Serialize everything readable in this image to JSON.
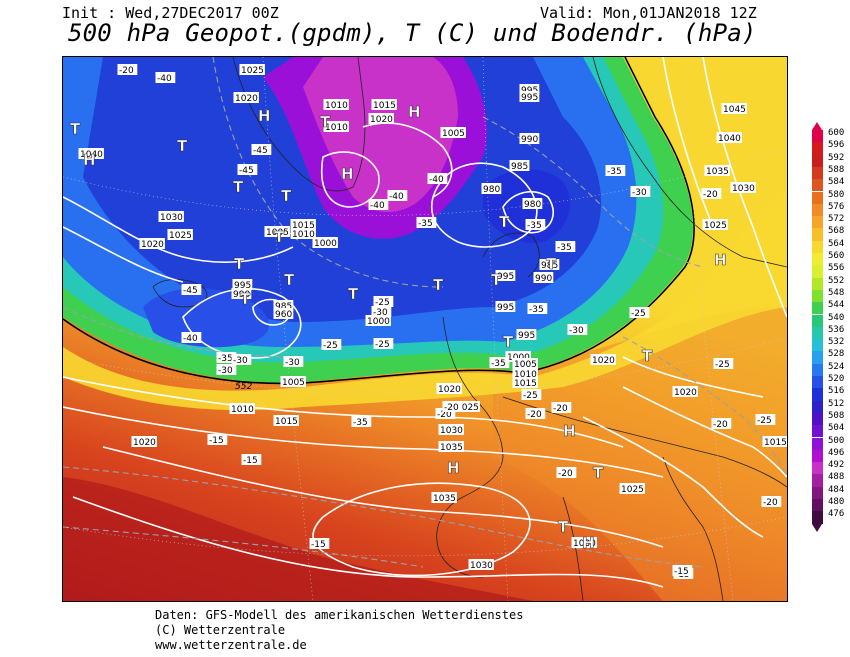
{
  "header": {
    "init": "Init : Wed,27DEC2017 00Z",
    "valid": "Valid: Mon,01JAN2018 12Z",
    "title": "500 hPa Geopot.(gpdm), T (C) und Bodendr. (hPa)"
  },
  "legend": {
    "values": [
      "600",
      "596",
      "592",
      "588",
      "584",
      "580",
      "576",
      "572",
      "568",
      "564",
      "560",
      "556",
      "552",
      "548",
      "544",
      "540",
      "536",
      "532",
      "528",
      "524",
      "520",
      "516",
      "512",
      "508",
      "504",
      "500",
      "496",
      "492",
      "488",
      "484",
      "480",
      "476"
    ],
    "colors": [
      "#e0004a",
      "#d41a1a",
      "#c81e1e",
      "#d23c1e",
      "#dd561e",
      "#e8701e",
      "#f08c28",
      "#f5a628",
      "#f8c028",
      "#f8d830",
      "#f0ec30",
      "#d8f030",
      "#b0e828",
      "#80e030",
      "#40d050",
      "#28c878",
      "#28c8a8",
      "#28c0d8",
      "#28a0f0",
      "#2878f0",
      "#2850e8",
      "#2030d8",
      "#3020c8",
      "#5010c8",
      "#7010d0",
      "#9010d8",
      "#b010d0",
      "#c830c8",
      "#a020a0",
      "#801880",
      "#601060",
      "#400c40"
    ]
  },
  "map_labels": {
    "pressure": [
      {
        "text": "1025"
      },
      {
        "text": "1020"
      },
      {
        "text": "1010"
      },
      {
        "text": "1015"
      },
      {
        "text": "1020"
      },
      {
        "text": "1005"
      },
      {
        "text": "1010"
      },
      {
        "text": "995"
      },
      {
        "text": "995"
      },
      {
        "text": "990"
      },
      {
        "text": "985"
      },
      {
        "text": "980"
      },
      {
        "text": "980"
      },
      {
        "text": "1045"
      },
      {
        "text": "1040"
      },
      {
        "text": "1035"
      },
      {
        "text": "1030"
      },
      {
        "text": "1025"
      },
      {
        "text": "1040"
      },
      {
        "text": "1030"
      },
      {
        "text": "1025"
      },
      {
        "text": "1020"
      },
      {
        "text": "1005"
      },
      {
        "text": "1015"
      },
      {
        "text": "1010"
      },
      {
        "text": "1000"
      },
      {
        "text": "995"
      },
      {
        "text": "990"
      },
      {
        "text": "985"
      },
      {
        "text": "960"
      },
      {
        "text": "985"
      },
      {
        "text": "995"
      },
      {
        "text": "985"
      },
      {
        "text": "990"
      },
      {
        "text": "995"
      },
      {
        "text": "1000"
      },
      {
        "text": "995"
      },
      {
        "text": "1000"
      },
      {
        "text": "1005"
      },
      {
        "text": "1010"
      },
      {
        "text": "1015"
      },
      {
        "text": "1020"
      },
      {
        "text": "1020"
      },
      {
        "text": "1020"
      },
      {
        "text": "1025"
      },
      {
        "text": "1030"
      },
      {
        "text": "1035"
      },
      {
        "text": "1015"
      },
      {
        "text": "1005"
      },
      {
        "text": "1010"
      },
      {
        "text": "1015"
      },
      {
        "text": "1020"
      },
      {
        "text": "1035"
      },
      {
        "text": "1025"
      },
      {
        "text": "1030"
      },
      {
        "text": "1030"
      }
    ],
    "temperature": [
      {
        "text": "-20"
      },
      {
        "text": "-40"
      },
      {
        "text": "-45"
      },
      {
        "text": "-45"
      },
      {
        "text": "-40"
      },
      {
        "text": "-40"
      },
      {
        "text": "-40"
      },
      {
        "text": "-35"
      },
      {
        "text": "-35"
      },
      {
        "text": "-35"
      },
      {
        "text": "-35"
      },
      {
        "text": "-30"
      },
      {
        "text": "-30"
      },
      {
        "text": "-25"
      },
      {
        "text": "-25"
      },
      {
        "text": "-30"
      },
      {
        "text": "-35"
      },
      {
        "text": "-20"
      },
      {
        "text": "-45"
      },
      {
        "text": "-40"
      },
      {
        "text": "-35"
      },
      {
        "text": "-30"
      },
      {
        "text": "-30"
      },
      {
        "text": "-25"
      },
      {
        "text": "-35"
      },
      {
        "text": "-30"
      },
      {
        "text": "-35"
      },
      {
        "text": "-25"
      },
      {
        "text": "-20"
      },
      {
        "text": "-20"
      },
      {
        "text": "-20"
      },
      {
        "text": "-25"
      },
      {
        "text": "-20"
      },
      {
        "text": "-15"
      },
      {
        "text": "-15"
      },
      {
        "text": "-15"
      },
      {
        "text": "-15"
      },
      {
        "text": "-20"
      },
      {
        "text": "-20"
      },
      {
        "text": "-25"
      },
      {
        "text": "-25"
      },
      {
        "text": "-20"
      },
      {
        "text": "-15"
      }
    ],
    "contour_552": "552",
    "highs_lows": [
      {
        "text": "T"
      },
      {
        "text": "T"
      },
      {
        "text": "T"
      },
      {
        "text": "H"
      },
      {
        "text": "T"
      },
      {
        "text": "H"
      },
      {
        "text": "T"
      },
      {
        "text": "H"
      },
      {
        "text": "H"
      },
      {
        "text": "T"
      },
      {
        "text": "T"
      },
      {
        "text": "T"
      },
      {
        "text": "T"
      },
      {
        "text": "T"
      },
      {
        "text": "T"
      },
      {
        "text": "T"
      },
      {
        "text": "H"
      },
      {
        "text": "T"
      },
      {
        "text": "T"
      },
      {
        "text": "T"
      },
      {
        "text": "H"
      },
      {
        "text": "T"
      },
      {
        "text": "H"
      },
      {
        "text": "T"
      },
      {
        "text": "H"
      },
      {
        "text": "T"
      }
    ]
  },
  "footer": {
    "line1": "Daten: GFS-Modell des amerikanischen Wetterdienstes",
    "line2": "(C) Wetterzentrale",
    "line3": "www.wetterzentrale.de"
  }
}
